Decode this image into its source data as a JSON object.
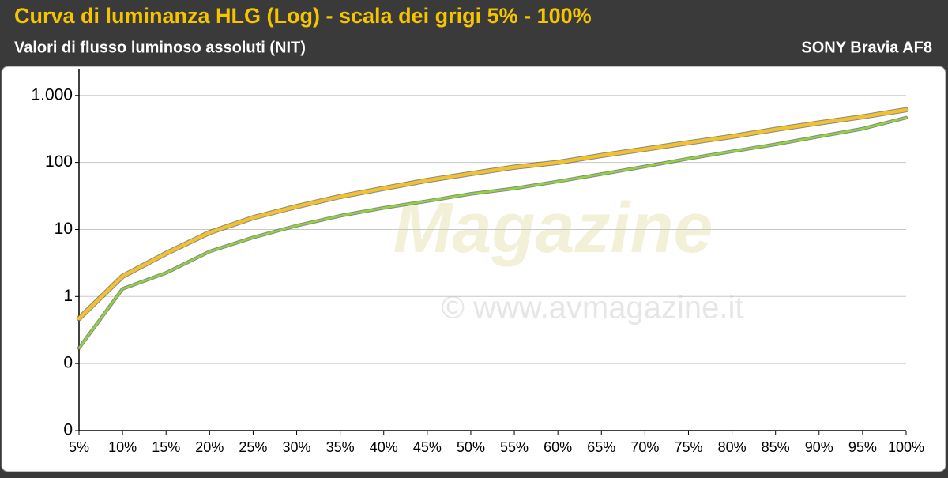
{
  "chart_data": {
    "type": "line",
    "title": "Curva di luminanza HLG (Log) - scala dei grigi 5% - 100%",
    "subtitle": "Valori di flusso luminoso assoluti (NIT)",
    "device": "SONY Bravia AF8",
    "watermark": [
      "Magazine",
      "© www.avmagazine.it"
    ],
    "categories": [
      "5%",
      "10%",
      "15%",
      "20%",
      "25%",
      "30%",
      "35%",
      "40%",
      "45%",
      "50%",
      "55%",
      "60%",
      "65%",
      "70%",
      "75%",
      "80%",
      "85%",
      "90%",
      "95%",
      "100%"
    ],
    "series": [
      {
        "color": "#f2c12e",
        "values": [
          0.47,
          2.0,
          4.4,
          9,
          15,
          22,
          31,
          41,
          54,
          68,
          85,
          100,
          127,
          158,
          197,
          244,
          311,
          388,
          480,
          610
        ]
      },
      {
        "color": "#8fd43a",
        "values": [
          0.17,
          1.3,
          2.25,
          4.7,
          7.6,
          11.4,
          16,
          21,
          26.5,
          34,
          41,
          52,
          67,
          87,
          114,
          146,
          186,
          244,
          318,
          466
        ]
      }
    ],
    "ylim": [
      0.01,
      2500
    ],
    "yticks": [
      {
        "value": 1000,
        "label": "1.000"
      },
      100,
      10,
      1,
      {
        "value": 0.1,
        "label": "0"
      },
      {
        "value": 0.01,
        "label": "0"
      }
    ],
    "log_y": true,
    "grid": true
  }
}
